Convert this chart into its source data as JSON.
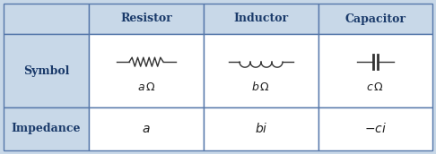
{
  "bg_color": "#c8d8e8",
  "cell_bg": "#ffffff",
  "row_label_bg": "#c8d8e8",
  "border_color": "#5577aa",
  "text_color_header": "#1a3a6a",
  "text_color_label": "#1a3a6a",
  "col_headers": [
    "Resistor",
    "Inductor",
    "Capacitor"
  ],
  "row_labels": [
    "Symbol",
    "Impedance"
  ],
  "symbol_line_color": "#333333",
  "impedance_labels": [
    "a",
    "bi",
    "−ci"
  ]
}
